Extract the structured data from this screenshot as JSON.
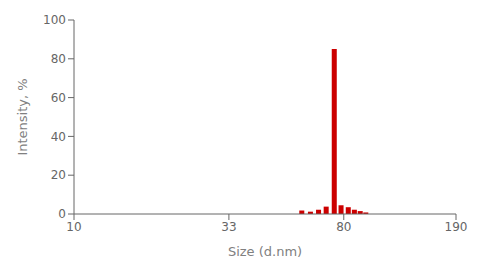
{
  "chart_data": {
    "type": "bar",
    "xlabel": "Size (d.nm)",
    "ylabel": "Intensity, %",
    "x": [
      58.0,
      62.0,
      66.0,
      70.0,
      74.5,
      78.5,
      83.0,
      87.0,
      91.0,
      95.0
    ],
    "values": [
      1.8,
      1.2,
      2.2,
      3.8,
      85.0,
      4.5,
      3.5,
      2.2,
      1.5,
      0.8
    ],
    "color": "#cc0000",
    "log": "x",
    "xlim": [
      10,
      190
    ],
    "ylim": [
      0,
      100
    ],
    "xticks": [
      10,
      33,
      80,
      190
    ],
    "yticks": [
      0,
      20,
      40,
      60,
      80,
      100
    ],
    "grid": false
  }
}
